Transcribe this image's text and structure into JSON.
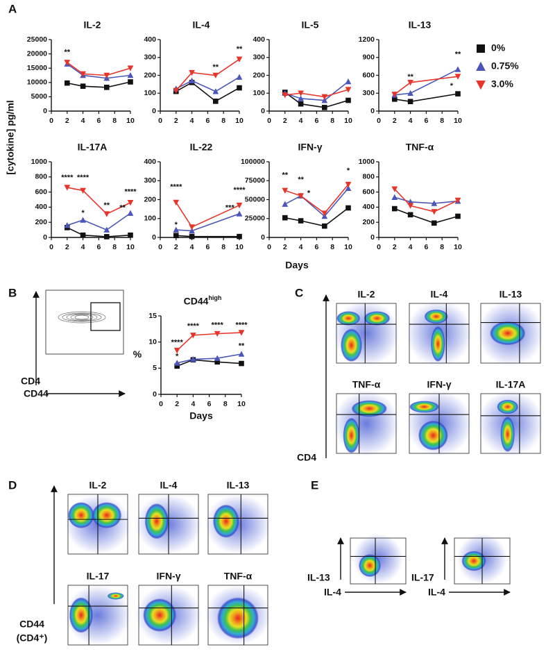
{
  "panel_labels": [
    "A",
    "B",
    "C",
    "D",
    "E"
  ],
  "y_axis_label": "[cytokine] pg/ml",
  "x_axis_label": "Days",
  "legend": [
    {
      "name": "0%",
      "color": "#111111",
      "marker": "square"
    },
    {
      "name": "0.75%",
      "color": "#4a56b8",
      "marker": "triangle-up"
    },
    {
      "name": "3.0%",
      "color": "#e8352a",
      "marker": "triangle-down"
    }
  ],
  "chart_data": [
    {
      "type": "line",
      "title": "IL-2",
      "x": [
        2,
        4,
        7,
        10
      ],
      "xlim": [
        0,
        10
      ],
      "xticks": [
        0,
        2,
        4,
        6,
        8,
        10
      ],
      "ylim": [
        0,
        25000
      ],
      "yticks": [
        0,
        5000,
        10000,
        15000,
        20000,
        25000
      ],
      "series": [
        {
          "values": [
            9800,
            8700,
            8300,
            10200
          ]
        },
        {
          "values": [
            16500,
            12500,
            11500,
            12500
          ]
        },
        {
          "values": [
            17000,
            13000,
            12500,
            15000
          ]
        }
      ],
      "annotations": [
        {
          "text": "**",
          "x": 2,
          "y": 20500
        }
      ]
    },
    {
      "type": "line",
      "title": "IL-4",
      "x": [
        2,
        4,
        7,
        10
      ],
      "xlim": [
        0,
        10
      ],
      "xticks": [
        0,
        2,
        4,
        6,
        8,
        10
      ],
      "ylim": [
        0,
        400
      ],
      "yticks": [
        0,
        100,
        200,
        300,
        400
      ],
      "series": [
        {
          "values": [
            110,
            160,
            55,
            130
          ]
        },
        {
          "values": [
            125,
            170,
            110,
            190
          ]
        },
        {
          "values": [
            115,
            215,
            200,
            290
          ]
        }
      ],
      "annotations": [
        {
          "text": "**",
          "x": 7,
          "y": 245
        },
        {
          "text": "**",
          "x": 10,
          "y": 345
        }
      ]
    },
    {
      "type": "line",
      "title": "IL-5",
      "x": [
        2,
        4,
        7,
        10
      ],
      "xlim": [
        0,
        10
      ],
      "xticks": [
        0,
        2,
        4,
        6,
        8,
        10
      ],
      "ylim": [
        0,
        400
      ],
      "yticks": [
        0,
        100,
        200,
        300,
        400
      ],
      "series": [
        {
          "values": [
            105,
            40,
            20,
            60
          ]
        },
        {
          "values": [
            100,
            70,
            60,
            165
          ]
        },
        {
          "values": [
            90,
            100,
            80,
            120
          ]
        }
      ],
      "annotations": []
    },
    {
      "type": "line",
      "title": "IL-13",
      "x": [
        2,
        4,
        10
      ],
      "xlim": [
        0,
        10
      ],
      "xticks": [
        0,
        2,
        4,
        6,
        8,
        10
      ],
      "ylim": [
        0,
        1200
      ],
      "yticks": [
        0,
        300,
        600,
        900,
        1200
      ],
      "series": [
        {
          "values": [
            200,
            160,
            290
          ]
        },
        {
          "values": [
            270,
            300,
            700
          ]
        },
        {
          "values": [
            280,
            480,
            580
          ]
        }
      ],
      "annotations": [
        {
          "text": "**",
          "x": 4,
          "y": 570
        },
        {
          "text": "**",
          "x": 10,
          "y": 950
        },
        {
          "text": "*",
          "x": 9.2,
          "y": 420
        }
      ]
    },
    {
      "type": "line",
      "title": "IL-17A",
      "x": [
        2,
        4,
        7,
        10
      ],
      "xlim": [
        0,
        10
      ],
      "xticks": [
        0,
        2,
        4,
        6,
        8,
        10
      ],
      "ylim": [
        0,
        1000
      ],
      "yticks": [
        0,
        200,
        400,
        600,
        800,
        1000
      ],
      "series": [
        {
          "values": [
            130,
            30,
            10,
            30
          ]
        },
        {
          "values": [
            160,
            230,
            100,
            320
          ]
        },
        {
          "values": [
            660,
            620,
            310,
            460
          ]
        }
      ],
      "annotations": [
        {
          "text": "****",
          "x": 2,
          "y": 790
        },
        {
          "text": "****",
          "x": 4,
          "y": 790
        },
        {
          "text": "*",
          "x": 4,
          "y": 320
        },
        {
          "text": "**",
          "x": 7,
          "y": 420
        },
        {
          "text": "****",
          "x": 10,
          "y": 600
        },
        {
          "text": "**",
          "x": 9,
          "y": 390
        }
      ]
    },
    {
      "type": "line",
      "title": "IL-22",
      "x": [
        2,
        4,
        10
      ],
      "xlim": [
        0,
        10
      ],
      "xticks": [
        0,
        2,
        4,
        6,
        8,
        10
      ],
      "ylim": [
        0,
        400
      ],
      "yticks": [
        0,
        100,
        200,
        300,
        400
      ],
      "series": [
        {
          "values": [
            10,
            5,
            5
          ]
        },
        {
          "values": [
            40,
            35,
            125
          ]
        },
        {
          "values": [
            185,
            55,
            170
          ]
        }
      ],
      "annotations": [
        {
          "text": "****",
          "x": 2,
          "y": 265
        },
        {
          "text": "*",
          "x": 2,
          "y": 65
        },
        {
          "text": "****",
          "x": 10,
          "y": 250
        },
        {
          "text": "***",
          "x": 8.8,
          "y": 155
        }
      ]
    },
    {
      "type": "line",
      "title": "IFN-γ",
      "x": [
        2,
        4,
        7,
        10
      ],
      "xlim": [
        0,
        10
      ],
      "xticks": [
        0,
        2,
        4,
        6,
        8,
        10
      ],
      "ylim": [
        0,
        100000
      ],
      "yticks": [
        0,
        25000,
        50000,
        75000,
        100000
      ],
      "series": [
        {
          "values": [
            26000,
            22000,
            15000,
            39000
          ]
        },
        {
          "values": [
            44000,
            55000,
            28000,
            65000
          ]
        },
        {
          "values": [
            62000,
            55000,
            32000,
            70000
          ]
        }
      ],
      "annotations": [
        {
          "text": "**",
          "x": 2,
          "y": 82000
        },
        {
          "text": "**",
          "x": 4,
          "y": 76000
        },
        {
          "text": "*",
          "x": 5,
          "y": 58000
        },
        {
          "text": "*",
          "x": 10,
          "y": 88000
        }
      ]
    },
    {
      "type": "line",
      "title": "TNF-α",
      "x": [
        2,
        4,
        7,
        10
      ],
      "xlim": [
        0,
        10
      ],
      "xticks": [
        0,
        2,
        4,
        6,
        8,
        10
      ],
      "ylim": [
        0,
        1000
      ],
      "yticks": [
        0,
        200,
        400,
        600,
        800,
        1000
      ],
      "series": [
        {
          "values": [
            380,
            300,
            190,
            280
          ]
        },
        {
          "values": [
            530,
            470,
            450,
            480
          ]
        },
        {
          "values": [
            640,
            420,
            340,
            490
          ]
        }
      ],
      "annotations": []
    },
    {
      "type": "line",
      "title": "CD44",
      "title_superscript": "high",
      "x_label": "Days",
      "y_label": "%",
      "x": [
        2,
        4,
        7,
        10
      ],
      "xlim": [
        0,
        10
      ],
      "xticks": [
        0,
        2,
        4,
        6,
        8,
        10
      ],
      "ylim": [
        0,
        15
      ],
      "yticks": [
        0,
        5,
        10,
        15
      ],
      "series": [
        {
          "values": [
            5.4,
            6.6,
            6.2,
            5.9
          ]
        },
        {
          "values": [
            6.0,
            6.7,
            6.9,
            7.7
          ]
        },
        {
          "values": [
            8.4,
            11.3,
            11.6,
            11.8
          ]
        }
      ],
      "annotations": [
        {
          "text": "****",
          "x": 2,
          "y": 9.9
        },
        {
          "text": "*",
          "x": 2,
          "y": 7.2
        },
        {
          "text": "****",
          "x": 4,
          "y": 13
        },
        {
          "text": "****",
          "x": 7,
          "y": 13.2
        },
        {
          "text": "****",
          "x": 10,
          "y": 13.2
        },
        {
          "text": "**",
          "x": 10,
          "y": 9.2
        }
      ]
    }
  ],
  "flow_panels": {
    "B": {
      "y_label": "CD4",
      "x_label": "CD44"
    },
    "C": {
      "titles": [
        "IL-2",
        "IL-4",
        "IL-13",
        "TNF-α",
        "IFN-γ",
        "IL-17A"
      ],
      "y_label": "CD4"
    },
    "D": {
      "titles": [
        "IL-2",
        "IL-4",
        "IL-13",
        "IL-17",
        "IFN-γ",
        "TNF-α"
      ],
      "y_label": "CD44",
      "y_label_note": "(CD4⁺)"
    },
    "E": {
      "plots": [
        {
          "y_label": "IL-13",
          "x_label": "IL-4"
        },
        {
          "y_label": "IL-17",
          "x_label": "IL-4"
        }
      ]
    }
  }
}
